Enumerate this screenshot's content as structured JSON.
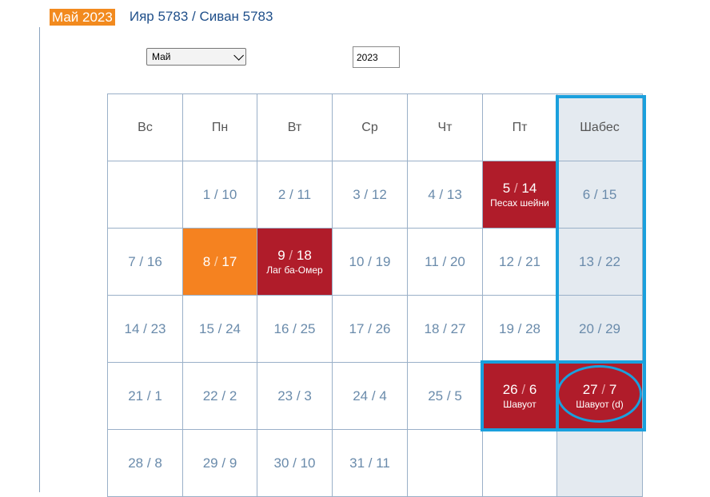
{
  "header": {
    "gregorian": "Май 2023",
    "hebrew": "Ияр 5783 / Сиван 5783"
  },
  "controls": {
    "month_value": "Май",
    "year_value": "2023"
  },
  "calendar": {
    "weekdays": [
      "Вс",
      "Пн",
      "Вт",
      "Ср",
      "Чт",
      "Пт",
      "Шабес"
    ],
    "weeks": [
      [
        {
          "g": "",
          "h": ""
        },
        {
          "g": "1",
          "h": "10"
        },
        {
          "g": "2",
          "h": "11"
        },
        {
          "g": "3",
          "h": "12"
        },
        {
          "g": "4",
          "h": "13"
        },
        {
          "g": "5",
          "h": "14",
          "note": "Песах шейни",
          "style": "red"
        },
        {
          "g": "6",
          "h": "15"
        }
      ],
      [
        {
          "g": "7",
          "h": "16"
        },
        {
          "g": "8",
          "h": "17",
          "style": "orange"
        },
        {
          "g": "9",
          "h": "18",
          "note": "Лаг ба-Омер",
          "style": "red"
        },
        {
          "g": "10",
          "h": "19"
        },
        {
          "g": "11",
          "h": "20"
        },
        {
          "g": "12",
          "h": "21"
        },
        {
          "g": "13",
          "h": "22"
        }
      ],
      [
        {
          "g": "14",
          "h": "23"
        },
        {
          "g": "15",
          "h": "24"
        },
        {
          "g": "16",
          "h": "25"
        },
        {
          "g": "17",
          "h": "26"
        },
        {
          "g": "18",
          "h": "27"
        },
        {
          "g": "19",
          "h": "28"
        },
        {
          "g": "20",
          "h": "29"
        }
      ],
      [
        {
          "g": "21",
          "h": "1"
        },
        {
          "g": "22",
          "h": "2"
        },
        {
          "g": "23",
          "h": "3"
        },
        {
          "g": "24",
          "h": "4"
        },
        {
          "g": "25",
          "h": "5"
        },
        {
          "g": "26",
          "h": "6",
          "note": "Шавуот",
          "style": "red"
        },
        {
          "g": "27",
          "h": "7",
          "note": "Шавуот (d)",
          "style": "red"
        }
      ],
      [
        {
          "g": "28",
          "h": "8"
        },
        {
          "g": "29",
          "h": "9"
        },
        {
          "g": "30",
          "h": "10"
        },
        {
          "g": "31",
          "h": "11"
        },
        {
          "g": "",
          "h": ""
        },
        {
          "g": "",
          "h": ""
        },
        {
          "g": "",
          "h": ""
        }
      ]
    ]
  },
  "colors": {
    "holiday": "#b01c2a",
    "today": "#f58220",
    "shabbat_column": "#e4eaf0",
    "annotation": "#1aa0dd"
  }
}
